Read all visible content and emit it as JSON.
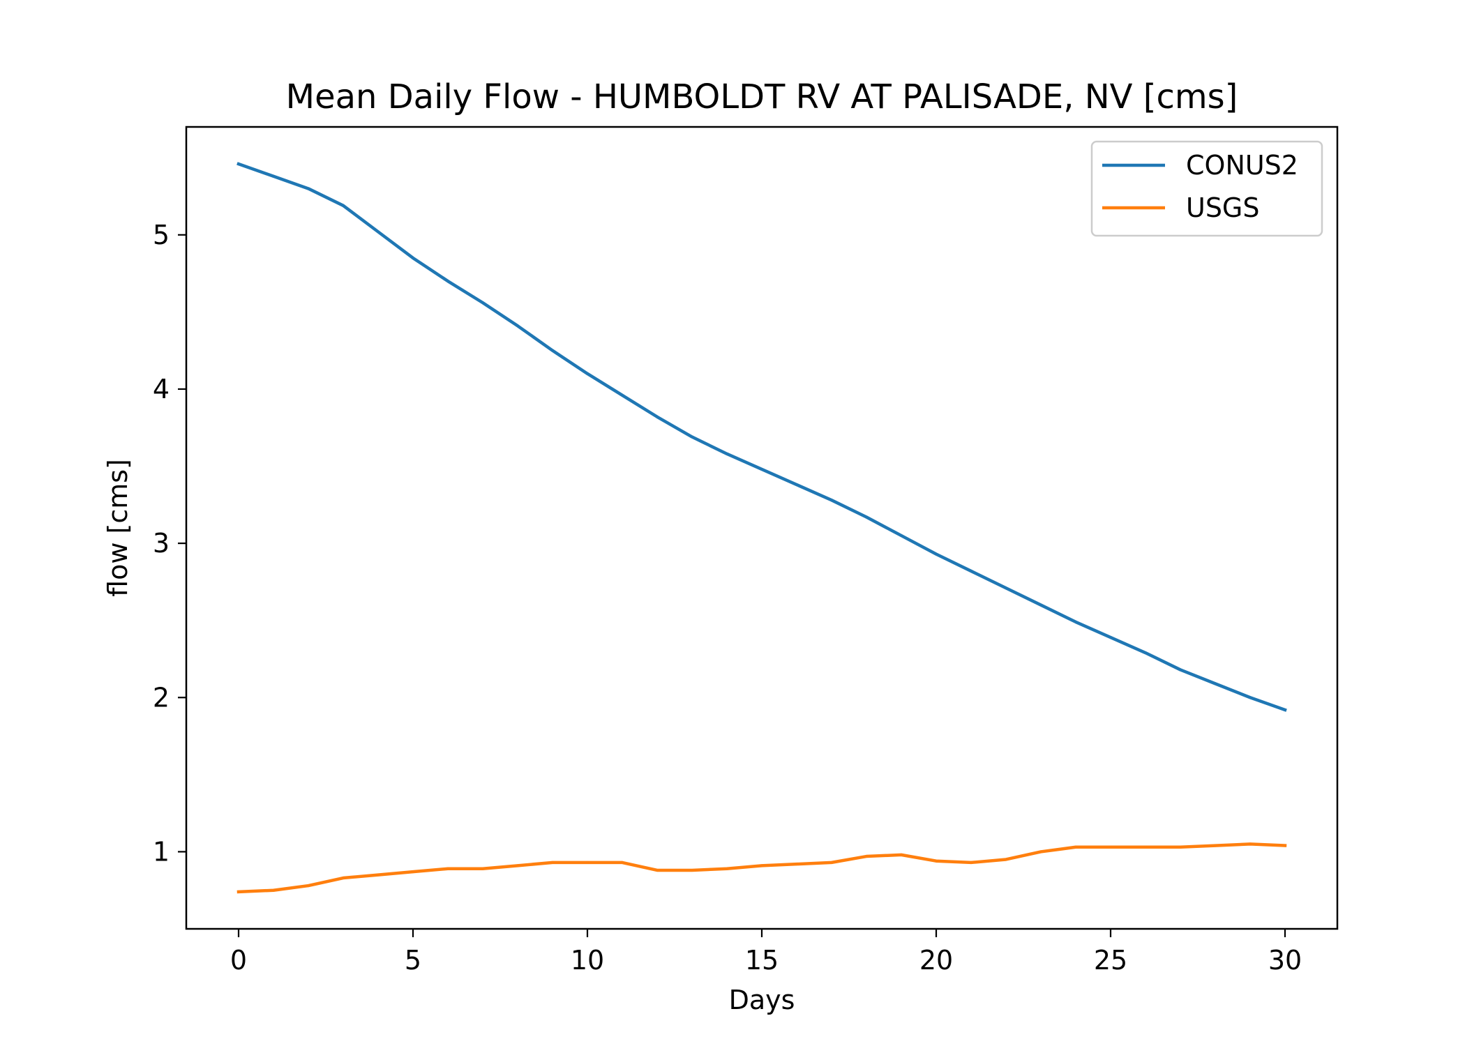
{
  "chart_data": {
    "type": "line",
    "title": "Mean Daily Flow - HUMBOLDT RV AT PALISADE, NV [cms]",
    "xlabel": "Days",
    "ylabel": "flow [cms]",
    "xlim": [
      -1.5,
      31.5
    ],
    "ylim": [
      0.5,
      5.7
    ],
    "xticks": [
      0,
      5,
      10,
      15,
      20,
      25,
      30
    ],
    "yticks": [
      1,
      2,
      3,
      4,
      5
    ],
    "grid": false,
    "legend_position": "top-right",
    "x": [
      0,
      1,
      2,
      3,
      4,
      5,
      6,
      7,
      8,
      9,
      10,
      11,
      12,
      13,
      14,
      15,
      16,
      17,
      18,
      19,
      20,
      21,
      22,
      23,
      24,
      25,
      26,
      27,
      28,
      29,
      30
    ],
    "series": [
      {
        "name": "CONUS2",
        "color": "#1f77b4",
        "values": [
          5.46,
          5.38,
          5.3,
          5.19,
          5.02,
          4.85,
          4.7,
          4.56,
          4.41,
          4.25,
          4.1,
          3.96,
          3.82,
          3.69,
          3.58,
          3.48,
          3.38,
          3.28,
          3.17,
          3.05,
          2.93,
          2.82,
          2.71,
          2.6,
          2.49,
          2.39,
          2.29,
          2.18,
          2.09,
          2.0,
          1.92
        ]
      },
      {
        "name": "USGS",
        "color": "#ff7f0e",
        "values": [
          0.74,
          0.75,
          0.78,
          0.83,
          0.85,
          0.87,
          0.89,
          0.89,
          0.91,
          0.93,
          0.93,
          0.93,
          0.88,
          0.88,
          0.89,
          0.91,
          0.92,
          0.93,
          0.97,
          0.98,
          0.94,
          0.93,
          0.95,
          1.0,
          1.03,
          1.03,
          1.03,
          1.03,
          1.04,
          1.05,
          1.04
        ]
      }
    ]
  }
}
